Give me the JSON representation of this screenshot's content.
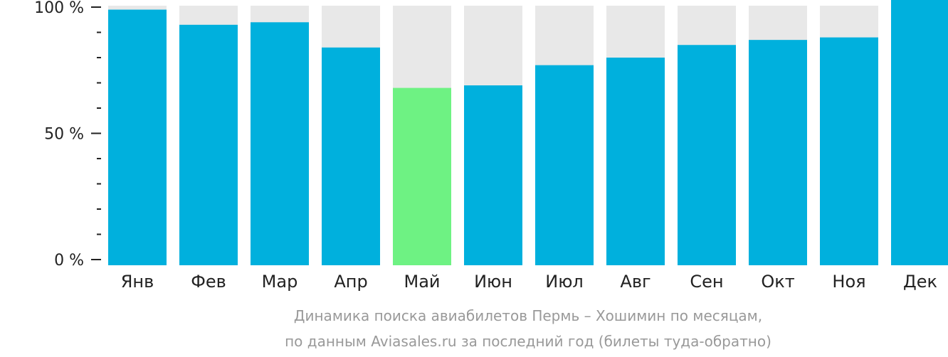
{
  "chart_data": {
    "type": "bar",
    "categories": [
      "Янв",
      "Фев",
      "Мар",
      "Апр",
      "Май",
      "Июн",
      "Июл",
      "Авг",
      "Сен",
      "Окт",
      "Ноя",
      "Дек"
    ],
    "values": [
      99,
      93,
      94,
      84,
      68,
      69,
      77,
      80,
      85,
      87,
      88,
      100
    ],
    "highlight_index": 4,
    "ylim": [
      0,
      100
    ],
    "yticks": [
      {
        "value": 100,
        "label": "100 %"
      },
      {
        "value": 50,
        "label": "50 %"
      },
      {
        "value": 0,
        "label": "0 %"
      }
    ],
    "grid": false,
    "legend": "none",
    "colors": {
      "bar": "#00b0dd",
      "highlight": "#6ef283",
      "background_bar": "#e8e8e8",
      "axis": "#222222",
      "caption": "#999999"
    }
  },
  "caption": {
    "line1": "Динамика поиска авиабилетов Пермь – Хошимин по месяцам,",
    "line2": "по данным Aviasales.ru за последний год (билеты туда-обратно)"
  }
}
